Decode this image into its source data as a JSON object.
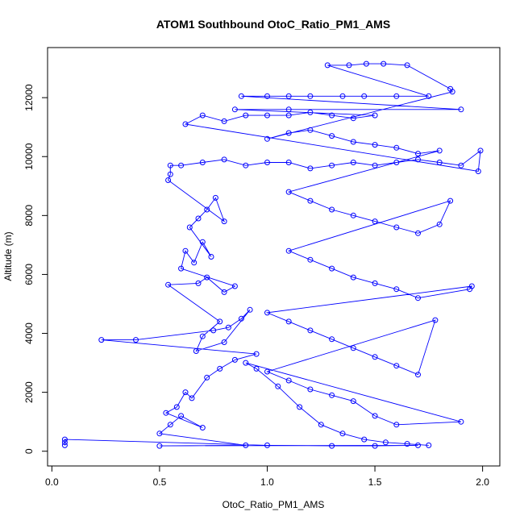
{
  "chart_data": {
    "type": "scatter",
    "title": "ATOM1 Southbound OtoC_Ratio_PM1_AMS",
    "xlabel": "OtoC_Ratio_PM1_AMS",
    "ylabel": "Altitude (m)",
    "xlim": [
      -0.02,
      2.08
    ],
    "ylim": [
      -500,
      13700
    ],
    "x_ticks": [
      0.0,
      0.5,
      1.0,
      1.5,
      2.0
    ],
    "x_tick_labels": [
      "0.0",
      "0.5",
      "1.0",
      "1.5",
      "2.0"
    ],
    "y_ticks": [
      0,
      2000,
      4000,
      6000,
      8000,
      10000,
      12000
    ],
    "y_tick_labels": [
      "0",
      "2000",
      "4000",
      "6000",
      "8000",
      "10000",
      "12000"
    ],
    "grid": false,
    "legend": "none",
    "series": [
      {
        "color": "#0000ff",
        "marker": "open-circle",
        "connected": true,
        "points": [
          [
            0.06,
            200
          ],
          [
            0.06,
            300
          ],
          [
            0.06,
            400
          ],
          [
            1.0,
            200
          ],
          [
            1.3,
            180
          ],
          [
            1.5,
            180
          ],
          [
            1.7,
            200
          ],
          [
            0.5,
            180
          ],
          [
            0.9,
            200
          ],
          [
            0.5,
            600
          ],
          [
            0.55,
            900
          ],
          [
            0.6,
            1200
          ],
          [
            0.7,
            800
          ],
          [
            0.53,
            1300
          ],
          [
            0.58,
            1500
          ],
          [
            0.62,
            2000
          ],
          [
            0.65,
            1800
          ],
          [
            0.72,
            2500
          ],
          [
            0.78,
            2800
          ],
          [
            0.85,
            3100
          ],
          [
            0.95,
            3300
          ],
          [
            0.23,
            3780
          ],
          [
            0.39,
            3780
          ],
          [
            0.75,
            4100
          ],
          [
            0.82,
            4200
          ],
          [
            0.88,
            4500
          ],
          [
            0.92,
            4800
          ],
          [
            0.8,
            3700
          ],
          [
            0.67,
            3400
          ],
          [
            0.7,
            3900
          ],
          [
            0.78,
            4400
          ],
          [
            0.54,
            5650
          ],
          [
            0.68,
            5700
          ],
          [
            0.72,
            5900
          ],
          [
            0.8,
            5400
          ],
          [
            0.85,
            5600
          ],
          [
            0.6,
            6200
          ],
          [
            0.62,
            6800
          ],
          [
            0.66,
            6400
          ],
          [
            0.7,
            7100
          ],
          [
            0.74,
            6600
          ],
          [
            0.64,
            7600
          ],
          [
            0.68,
            7900
          ],
          [
            0.72,
            8200
          ],
          [
            0.76,
            8600
          ],
          [
            0.8,
            7800
          ],
          [
            0.54,
            9200
          ],
          [
            0.55,
            9400
          ],
          [
            0.55,
            9700
          ],
          [
            0.6,
            9700
          ],
          [
            0.7,
            9800
          ],
          [
            0.8,
            9900
          ],
          [
            0.9,
            9700
          ],
          [
            1.0,
            9800
          ],
          [
            1.1,
            9800
          ],
          [
            1.2,
            9600
          ],
          [
            1.3,
            9700
          ],
          [
            1.4,
            9800
          ],
          [
            1.5,
            9700
          ],
          [
            1.6,
            9800
          ],
          [
            1.7,
            9900
          ],
          [
            1.8,
            9800
          ],
          [
            1.9,
            9700
          ],
          [
            1.99,
            10200
          ],
          [
            1.98,
            9500
          ],
          [
            0.62,
            11100
          ],
          [
            0.7,
            11400
          ],
          [
            0.8,
            11200
          ],
          [
            0.9,
            11400
          ],
          [
            1.0,
            11400
          ],
          [
            1.1,
            11400
          ],
          [
            1.2,
            11500
          ],
          [
            1.3,
            11400
          ],
          [
            1.4,
            11300
          ],
          [
            1.5,
            11400
          ],
          [
            0.85,
            11600
          ],
          [
            1.1,
            11600
          ],
          [
            1.9,
            11600
          ],
          [
            0.88,
            12050
          ],
          [
            1.0,
            12050
          ],
          [
            1.1,
            12050
          ],
          [
            1.2,
            12050
          ],
          [
            1.35,
            12050
          ],
          [
            1.45,
            12050
          ],
          [
            1.6,
            12050
          ],
          [
            1.75,
            12050
          ],
          [
            1.28,
            13100
          ],
          [
            1.38,
            13100
          ],
          [
            1.46,
            13150
          ],
          [
            1.54,
            13150
          ],
          [
            1.65,
            13100
          ],
          [
            1.85,
            12300
          ],
          [
            1.86,
            12200
          ],
          [
            1.0,
            10600
          ],
          [
            1.1,
            10800
          ],
          [
            1.2,
            10900
          ],
          [
            1.3,
            10700
          ],
          [
            1.4,
            10500
          ],
          [
            1.5,
            10400
          ],
          [
            1.6,
            10300
          ],
          [
            1.7,
            10100
          ],
          [
            1.8,
            10200
          ],
          [
            1.1,
            8800
          ],
          [
            1.2,
            8500
          ],
          [
            1.3,
            8200
          ],
          [
            1.4,
            8000
          ],
          [
            1.5,
            7800
          ],
          [
            1.6,
            7600
          ],
          [
            1.7,
            7400
          ],
          [
            1.8,
            7700
          ],
          [
            1.85,
            8500
          ],
          [
            1.1,
            6800
          ],
          [
            1.2,
            6500
          ],
          [
            1.3,
            6200
          ],
          [
            1.4,
            5900
          ],
          [
            1.5,
            5700
          ],
          [
            1.6,
            5500
          ],
          [
            1.7,
            5200
          ],
          [
            1.94,
            5500
          ],
          [
            1.95,
            5600
          ],
          [
            1.0,
            4700
          ],
          [
            1.1,
            4400
          ],
          [
            1.2,
            4100
          ],
          [
            1.3,
            3800
          ],
          [
            1.4,
            3500
          ],
          [
            1.5,
            3200
          ],
          [
            1.6,
            2900
          ],
          [
            1.7,
            2600
          ],
          [
            1.78,
            4450
          ],
          [
            1.0,
            2700
          ],
          [
            1.1,
            2400
          ],
          [
            1.2,
            2100
          ],
          [
            1.3,
            1900
          ],
          [
            1.4,
            1700
          ],
          [
            1.5,
            1200
          ],
          [
            1.6,
            900
          ],
          [
            1.9,
            1000
          ],
          [
            0.9,
            3000
          ],
          [
            0.95,
            2800
          ],
          [
            1.05,
            2200
          ],
          [
            1.15,
            1500
          ],
          [
            1.25,
            900
          ],
          [
            1.35,
            600
          ],
          [
            1.45,
            400
          ],
          [
            1.55,
            300
          ],
          [
            1.65,
            250
          ],
          [
            1.75,
            200
          ]
        ]
      }
    ]
  }
}
